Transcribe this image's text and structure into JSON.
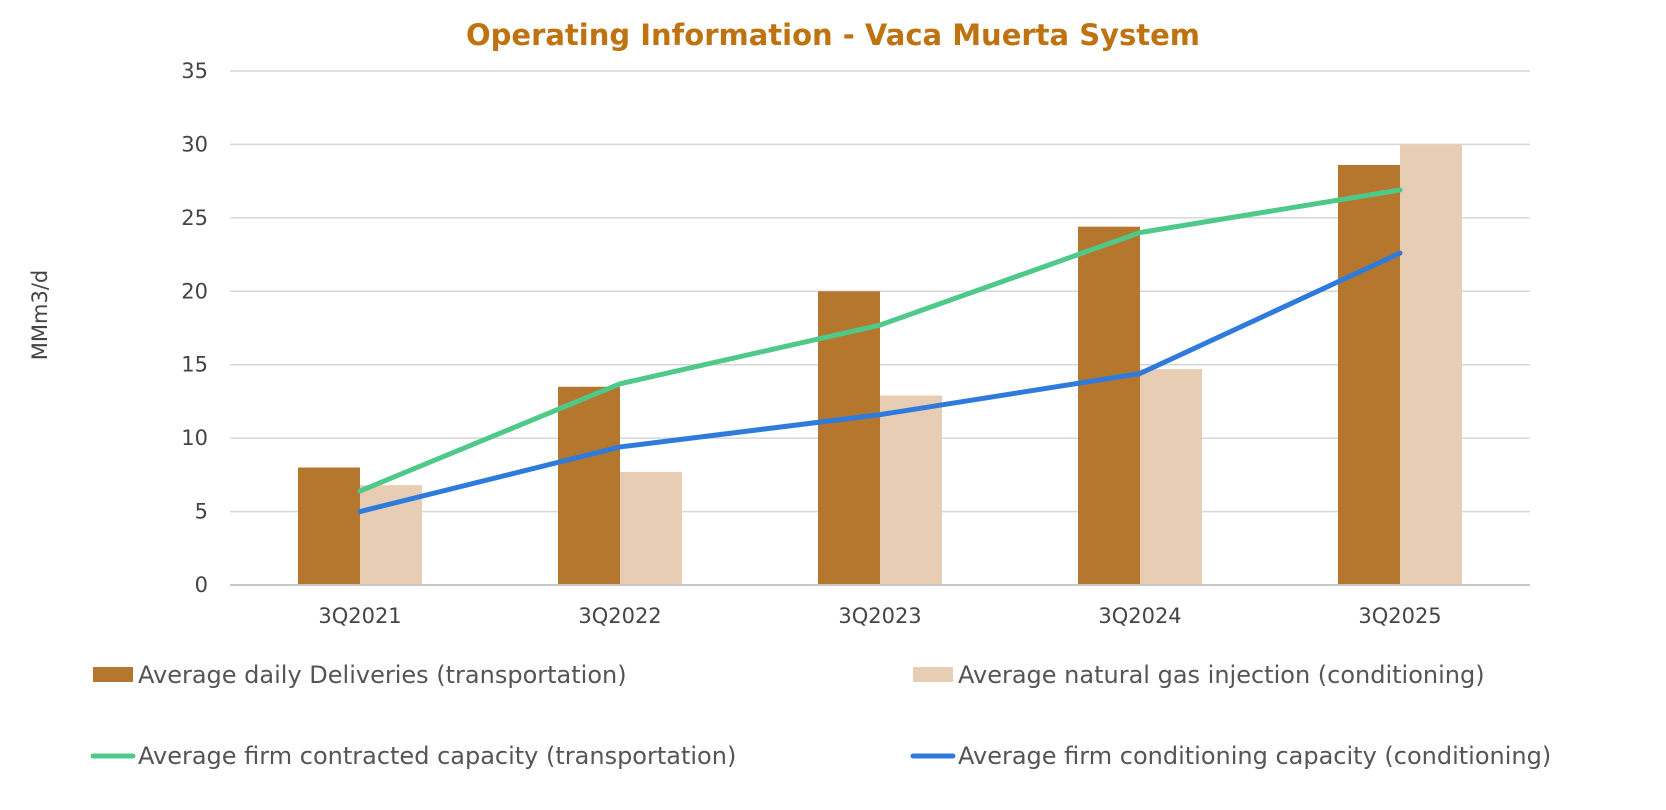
{
  "chart_data": {
    "type": "bar",
    "title": "Operating Information - Vaca Muerta System",
    "xlabel": "",
    "ylabel": "MMm3/d",
    "ylim": [
      0,
      35
    ],
    "yticks": [
      0,
      5,
      10,
      15,
      20,
      25,
      30,
      35
    ],
    "grid": true,
    "legend_position": "bottom",
    "categories": [
      "3Q2021",
      "3Q2022",
      "3Q2023",
      "3Q2024",
      "3Q2025"
    ],
    "series": [
      {
        "name": "Average daily Deliveries (transportation)",
        "kind": "bar",
        "color": "#b5762e",
        "values": [
          8.0,
          13.5,
          20.0,
          24.4,
          28.6
        ]
      },
      {
        "name": "Average natural gas injection (conditioning)",
        "kind": "bar",
        "color": "#e8cdb5",
        "values": [
          6.8,
          7.7,
          12.9,
          14.7,
          30.0
        ]
      },
      {
        "name": "Average firm contracted capacity (transportation)",
        "kind": "line",
        "color": "#4ec98a",
        "values": [
          6.4,
          13.7,
          17.7,
          24.0,
          26.9
        ]
      },
      {
        "name": "Average firm conditioning capacity (conditioning)",
        "kind": "line",
        "color": "#2f7bdc",
        "values": [
          5.0,
          9.4,
          11.6,
          14.4,
          22.6
        ]
      }
    ],
    "title_color": "#bf7310",
    "gridline_color": "#d6d6d6"
  }
}
